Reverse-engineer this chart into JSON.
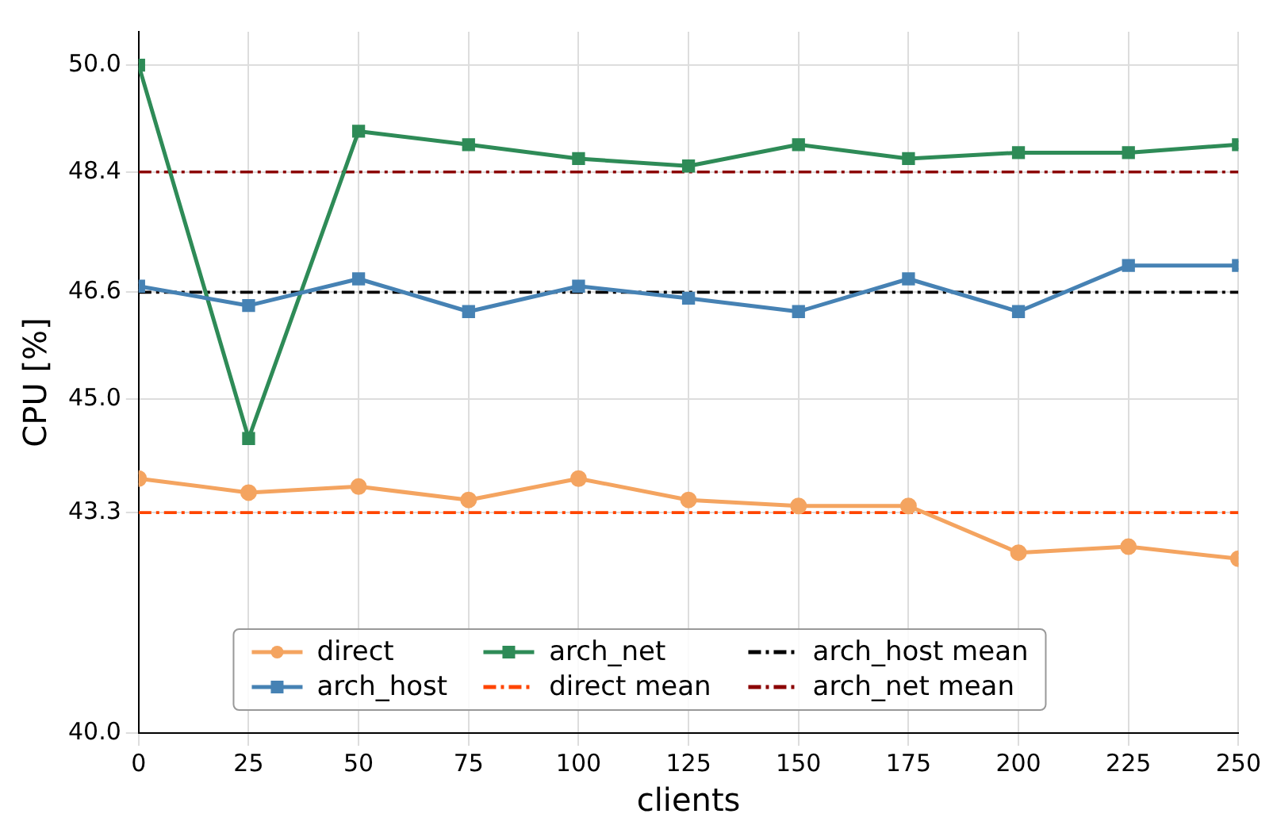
{
  "chart_data": {
    "type": "line",
    "xlabel": "clients",
    "ylabel": "CPU [%]",
    "x": [
      0,
      25,
      50,
      75,
      100,
      125,
      150,
      175,
      200,
      225,
      250
    ],
    "series": [
      {
        "name": "direct",
        "color": "#f4a460",
        "values": [
          43.81,
          43.6,
          43.69,
          43.49,
          43.81,
          43.49,
          43.4,
          43.4,
          42.7,
          42.79,
          42.61
        ]
      },
      {
        "name": "arch_host",
        "color": "#4682b4",
        "marker": "square",
        "values": [
          46.69,
          46.4,
          46.8,
          46.31,
          46.69,
          46.51,
          46.31,
          46.8,
          46.31,
          47.0,
          47.0
        ]
      },
      {
        "name": "arch_net",
        "color": "#2e8b57",
        "marker": "square",
        "values": [
          50.0,
          44.41,
          49.01,
          48.81,
          48.6,
          48.49,
          48.81,
          48.6,
          48.69,
          48.69,
          48.81
        ]
      }
    ],
    "ref_lines": [
      {
        "axis": "y",
        "value": 43.3,
        "label": "direct mean",
        "color": "#ff4500",
        "line_style": "dashed"
      },
      {
        "axis": "y",
        "value": 46.6,
        "label": "arch_host mean",
        "color": "#000000",
        "line_style": "dashed"
      },
      {
        "axis": "y",
        "value": 48.4,
        "label": "arch_net mean",
        "color": "#8b0000",
        "line_style": "dashed"
      }
    ],
    "marker": "circle",
    "line_style": "solid",
    "xlim": [
      0,
      250
    ],
    "xticks": [
      0,
      25,
      50,
      75,
      100,
      125,
      150,
      175,
      200,
      225,
      250
    ],
    "ylim": [
      40,
      50.5
    ],
    "yticks": [
      {
        "value": 40,
        "label": "40.0"
      },
      43.3,
      {
        "value": 45,
        "label": "45.0"
      },
      46.6,
      48.4,
      {
        "value": 50,
        "label": "50.0"
      }
    ],
    "grid": true,
    "legend": "bottom"
  }
}
